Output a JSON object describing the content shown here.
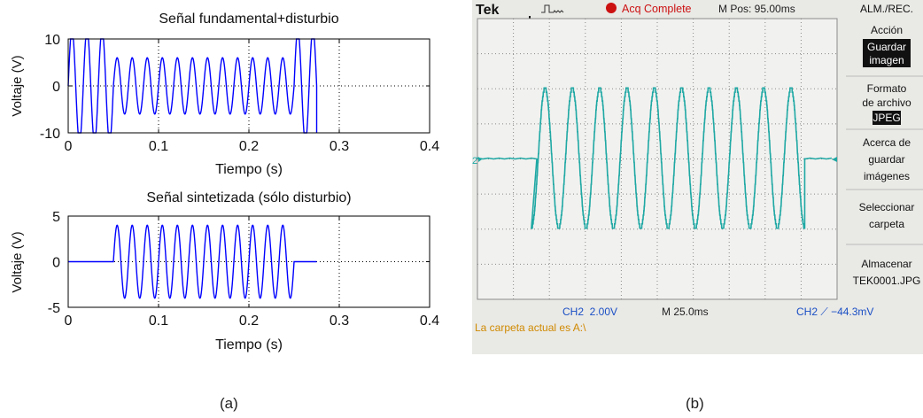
{
  "chart_data": [
    {
      "type": "line",
      "title": "Señal fundamental+disturbio",
      "xlabel": "Tiempo (s)",
      "ylabel": "Voltaje (V)",
      "xlim": [
        0,
        0.4
      ],
      "ylim": [
        -10,
        10
      ],
      "xticks": [
        "0",
        "0.1",
        "0.2",
        "0.3",
        "0.4"
      ],
      "yticks": [
        "10",
        "0",
        "-10"
      ],
      "grid": true,
      "series": [
        {
          "color": "#0000ff",
          "signal": "sine",
          "frequency_hz": 60,
          "x_end": 0.275,
          "segments": [
            {
              "t0": 0,
              "t1": 0.05,
              "amplitude": 12
            },
            {
              "t0": 0.05,
              "t1": 0.25,
              "amplitude": 6
            },
            {
              "t0": 0.25,
              "t1": 0.275,
              "amplitude": 12
            }
          ]
        }
      ]
    },
    {
      "type": "line",
      "title": "Señal sintetizada (sólo disturbio)",
      "xlabel": "Tiempo (s)",
      "ylabel": "Voltaje (V)",
      "xlim": [
        0,
        0.4
      ],
      "ylim": [
        -5,
        5
      ],
      "xticks": [
        "0",
        "0.1",
        "0.2",
        "0.3",
        "0.4"
      ],
      "yticks": [
        "5",
        "0",
        "-5"
      ],
      "grid": true,
      "series": [
        {
          "color": "#0000ff",
          "signal": "sine",
          "frequency_hz": 60,
          "x_end": 0.275,
          "segments": [
            {
              "t0": 0,
              "t1": 0.05,
              "amplitude": 0
            },
            {
              "t0": 0.05,
              "t1": 0.25,
              "amplitude": 4
            },
            {
              "t0": 0.25,
              "t1": 0.275,
              "amplitude": 0
            }
          ]
        }
      ]
    },
    {
      "type": "line",
      "series": [
        {
          "name": "CH2",
          "color": "#1fa8a4",
          "signal": "sine",
          "cycles": 10,
          "amplitude_div": 2,
          "burst_start_div": 1.5,
          "burst_end_div": 9.1
        }
      ],
      "xlim": [
        0,
        10
      ],
      "ylim": [
        -4,
        4
      ],
      "grid": true
    }
  ],
  "scope": {
    "brand": "Tek",
    "status": "Acq Complete",
    "mpos": "M Pos: 95.00ms",
    "ch_marker": "2",
    "ch_scale": "CH2  2.00V",
    "time_scale": "M 25.0ms",
    "trigger": "CH2 ⟋ −44.3mV",
    "footer": "La carpeta actual es A:\\",
    "colors": {
      "trace": "#1fa8a4",
      "status": "#cc1111",
      "footer": "#d08a00",
      "blue_text": "#1a4fc4"
    },
    "menu": {
      "title": "ALM./REC.",
      "accion": "Acción",
      "accion_line1": "Guardar",
      "accion_line2": "imagen",
      "formato_line1": "Formato",
      "formato_line2": "de archivo",
      "formato_value": "JPEG",
      "acerca_line1": "Acerca de",
      "acerca_line2": "guardar",
      "acerca_line3": "imágenes",
      "seleccionar_line1": "Seleccionar",
      "seleccionar_line2": "carpeta",
      "almacenar_line1": "Almacenar",
      "almacenar_line2": "TEK0001.JPG"
    }
  },
  "captions": {
    "left": "(a)",
    "right": "(b)"
  }
}
